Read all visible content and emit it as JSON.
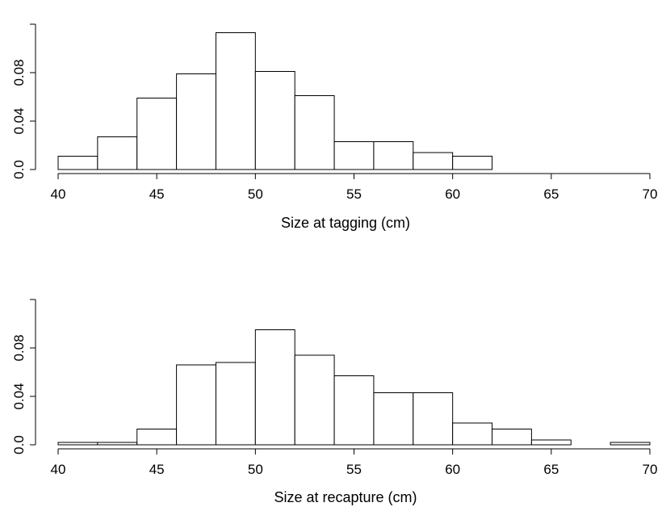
{
  "chart_data": [
    {
      "type": "bar",
      "subtype": "histogram",
      "xlabel": "Size at tagging (cm)",
      "ylabel": "",
      "xlim": [
        40,
        70
      ],
      "ylim": [
        0,
        0.12
      ],
      "x_ticks": [
        "40",
        "45",
        "50",
        "55",
        "60",
        "65",
        "70"
      ],
      "y_ticks": [
        "0.0",
        "0.04",
        "0.08"
      ],
      "bins": [
        {
          "from": 40,
          "to": 42,
          "value": 0.011
        },
        {
          "from": 42,
          "to": 44,
          "value": 0.027
        },
        {
          "from": 44,
          "to": 46,
          "value": 0.059
        },
        {
          "from": 46,
          "to": 48,
          "value": 0.079
        },
        {
          "from": 48,
          "to": 50,
          "value": 0.113
        },
        {
          "from": 50,
          "to": 52,
          "value": 0.081
        },
        {
          "from": 52,
          "to": 54,
          "value": 0.061
        },
        {
          "from": 54,
          "to": 56,
          "value": 0.023
        },
        {
          "from": 56,
          "to": 58,
          "value": 0.023
        },
        {
          "from": 58,
          "to": 60,
          "value": 0.014
        },
        {
          "from": 60,
          "to": 62,
          "value": 0.011
        }
      ]
    },
    {
      "type": "bar",
      "subtype": "histogram",
      "xlabel": "Size at recapture (cm)",
      "ylabel": "",
      "xlim": [
        40,
        70
      ],
      "ylim": [
        0,
        0.12
      ],
      "x_ticks": [
        "40",
        "45",
        "50",
        "55",
        "60",
        "65",
        "70"
      ],
      "y_ticks": [
        "0.0",
        "0.04",
        "0.08"
      ],
      "bins": [
        {
          "from": 40,
          "to": 42,
          "value": 0.002
        },
        {
          "from": 42,
          "to": 44,
          "value": 0.002
        },
        {
          "from": 44,
          "to": 46,
          "value": 0.013
        },
        {
          "from": 46,
          "to": 48,
          "value": 0.066
        },
        {
          "from": 48,
          "to": 50,
          "value": 0.068
        },
        {
          "from": 50,
          "to": 52,
          "value": 0.095
        },
        {
          "from": 52,
          "to": 54,
          "value": 0.074
        },
        {
          "from": 54,
          "to": 56,
          "value": 0.057
        },
        {
          "from": 56,
          "to": 58,
          "value": 0.043
        },
        {
          "from": 58,
          "to": 60,
          "value": 0.043
        },
        {
          "from": 60,
          "to": 62,
          "value": 0.018
        },
        {
          "from": 62,
          "to": 64,
          "value": 0.013
        },
        {
          "from": 64,
          "to": 66,
          "value": 0.004
        },
        {
          "from": 66,
          "to": 68,
          "value": 0.0
        },
        {
          "from": 68,
          "to": 70,
          "value": 0.002
        }
      ]
    }
  ]
}
